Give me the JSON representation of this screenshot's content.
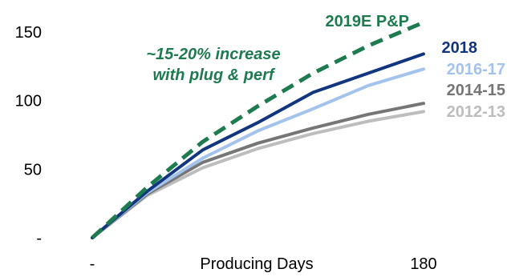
{
  "chart_data": {
    "type": "line",
    "xlabel": "Producing Days",
    "x_tick_labels": [
      "-",
      "180"
    ],
    "x": [
      0,
      30,
      60,
      90,
      120,
      150,
      180
    ],
    "ylim": [
      0,
      160
    ],
    "y_ticks": [
      0,
      50,
      100,
      150
    ],
    "y_tick_labels": [
      "-",
      "50",
      "100",
      "150"
    ],
    "annotation": "~15-20% increase\nwith plug & perf",
    "series": [
      {
        "name": "2019E P&P",
        "color": "#1e7b4f",
        "dash": true,
        "values": [
          0,
          37,
          70,
          96,
          120,
          140,
          157
        ]
      },
      {
        "name": "2018",
        "color": "#12357f",
        "dash": false,
        "values": [
          0,
          34,
          64,
          84,
          106,
          120,
          134
        ]
      },
      {
        "name": "2016-17",
        "color": "#a3c3ec",
        "dash": false,
        "values": [
          0,
          33,
          58,
          78,
          94,
          111,
          123
        ]
      },
      {
        "name": "2014-15",
        "color": "#767676",
        "dash": false,
        "values": [
          0,
          32,
          55,
          69,
          80,
          90,
          98
        ]
      },
      {
        "name": "2012-13",
        "color": "#bdbdbd",
        "dash": false,
        "values": [
          0,
          31,
          51,
          65,
          76,
          85,
          92
        ]
      }
    ],
    "grid": false,
    "legend": "right, inline labels"
  }
}
